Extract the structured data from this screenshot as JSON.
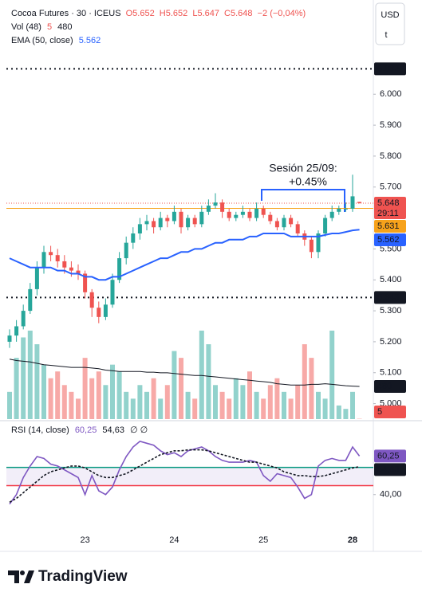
{
  "chart_data": [
    {
      "type": "candlestick",
      "symbol": "Cocoa Futures · 30 · ICEUS",
      "ohlc_labels": [
        "O5.652",
        "H5.652",
        "L5.647",
        "C5.648",
        "−2 (−0,04%)"
      ],
      "categories": [
        null,
        null,
        null,
        null,
        null,
        null,
        null,
        null,
        null,
        null,
        null,
        "23",
        null,
        null,
        null,
        null,
        null,
        null,
        null,
        null,
        null,
        null,
        null,
        null,
        "24",
        null,
        null,
        null,
        null,
        null,
        null,
        null,
        null,
        null,
        null,
        null,
        null,
        "25",
        null,
        null,
        null,
        null,
        null,
        null,
        null,
        null,
        null,
        null,
        null,
        null,
        "28",
        null
      ],
      "open": [
        5.2,
        5.22,
        5.25,
        5.3,
        5.37,
        5.44,
        5.49,
        5.48,
        5.46,
        5.44,
        5.43,
        5.42,
        5.36,
        5.31,
        5.28,
        5.32,
        5.4,
        5.47,
        5.52,
        5.55,
        5.58,
        5.59,
        5.57,
        5.6,
        5.59,
        5.62,
        5.57,
        5.6,
        5.58,
        5.62,
        5.64,
        5.65,
        5.62,
        5.6,
        5.61,
        5.62,
        5.6,
        5.63,
        5.61,
        5.59,
        5.57,
        5.6,
        5.58,
        5.55,
        5.53,
        5.49,
        5.55,
        5.6,
        5.62,
        5.63,
        5.63,
        5.652
      ],
      "high": [
        5.24,
        5.27,
        5.32,
        5.39,
        5.46,
        5.51,
        5.51,
        5.5,
        5.48,
        5.46,
        5.45,
        5.43,
        5.37,
        5.33,
        5.34,
        5.42,
        5.49,
        5.54,
        5.57,
        5.6,
        5.61,
        5.6,
        5.62,
        5.61,
        5.64,
        5.63,
        5.61,
        5.61,
        5.64,
        5.66,
        5.68,
        5.66,
        5.63,
        5.62,
        5.64,
        5.63,
        5.65,
        5.64,
        5.62,
        5.6,
        5.61,
        5.61,
        5.59,
        5.56,
        5.54,
        5.56,
        5.61,
        5.64,
        5.64,
        5.65,
        5.74,
        5.652
      ],
      "low": [
        5.18,
        5.2,
        5.24,
        5.29,
        5.35,
        5.42,
        5.46,
        5.44,
        5.42,
        5.41,
        5.4,
        5.34,
        5.28,
        5.26,
        5.27,
        5.31,
        5.39,
        5.45,
        5.5,
        5.53,
        5.56,
        5.55,
        5.56,
        5.57,
        5.58,
        5.55,
        5.56,
        5.57,
        5.57,
        5.61,
        5.63,
        5.6,
        5.59,
        5.59,
        5.6,
        5.59,
        5.59,
        5.6,
        5.58,
        5.56,
        5.56,
        5.57,
        5.54,
        5.51,
        5.47,
        5.47,
        5.54,
        5.59,
        5.61,
        5.62,
        5.62,
        5.647
      ],
      "close": [
        5.22,
        5.25,
        5.3,
        5.37,
        5.44,
        5.49,
        5.48,
        5.46,
        5.44,
        5.43,
        5.42,
        5.36,
        5.31,
        5.28,
        5.32,
        5.4,
        5.47,
        5.52,
        5.55,
        5.58,
        5.59,
        5.57,
        5.6,
        5.59,
        5.62,
        5.57,
        5.6,
        5.58,
        5.62,
        5.64,
        5.65,
        5.62,
        5.6,
        5.61,
        5.62,
        5.6,
        5.63,
        5.61,
        5.59,
        5.57,
        5.6,
        5.58,
        5.55,
        5.53,
        5.49,
        5.55,
        5.6,
        5.62,
        5.63,
        5.63,
        5.67,
        5.648
      ],
      "up_color": "#26a69a",
      "down_color": "#ef5350",
      "ylim": [
        4.95,
        6.15
      ],
      "yticks": [
        {
          "value": 6.0,
          "label": "6.000"
        },
        {
          "value": 5.9,
          "label": "5.900"
        },
        {
          "value": 5.8,
          "label": "5.800"
        },
        {
          "value": 5.7,
          "label": "5.700"
        },
        {
          "value": 5.5,
          "label": "5.500"
        },
        {
          "value": 5.4,
          "label": "5.400"
        },
        {
          "value": 5.3,
          "label": "5.300"
        },
        {
          "value": 5.2,
          "label": "5.200"
        },
        {
          "value": 5.1,
          "label": "5.100"
        },
        {
          "value": 5.0,
          "label": "5.000"
        }
      ],
      "countdown": "29:11",
      "prev_close": 5.631,
      "prev_close_color": "#f7a21b",
      "levels": [
        6.082,
        5.343
      ],
      "ema": {
        "name": "EMA (50, close)",
        "color": "#2962ff",
        "values": [
          5.47,
          5.46,
          5.45,
          5.44,
          5.44,
          5.44,
          5.44,
          5.43,
          5.43,
          5.42,
          5.42,
          5.41,
          5.41,
          5.4,
          5.4,
          5.41,
          5.41,
          5.42,
          5.43,
          5.44,
          5.45,
          5.46,
          5.47,
          5.47,
          5.48,
          5.49,
          5.49,
          5.5,
          5.5,
          5.51,
          5.52,
          5.52,
          5.53,
          5.53,
          5.53,
          5.54,
          5.54,
          5.55,
          5.55,
          5.55,
          5.55,
          5.54,
          5.54,
          5.54,
          5.54,
          5.54,
          5.545,
          5.55,
          5.55,
          5.555,
          5.56,
          5.562
        ]
      },
      "volume": {
        "name": "Vol (48)",
        "lim": [
          0,
          5455
        ],
        "values": [
          400,
          900,
          1200,
          1300,
          1100,
          800,
          600,
          700,
          500,
          400,
          300,
          900,
          600,
          700,
          500,
          800,
          700,
          400,
          300,
          500,
          400,
          600,
          300,
          500,
          1000,
          900,
          400,
          300,
          1300,
          1100,
          500,
          400,
          300,
          600,
          500,
          700,
          400,
          300,
          500,
          600,
          400,
          300,
          500,
          1100,
          900,
          400,
          300,
          1300,
          200,
          150,
          400,
          5
        ],
        "ma": [
          880,
          860,
          850,
          840,
          820,
          800,
          790,
          780,
          770,
          760,
          760,
          760,
          750,
          740,
          720,
          710,
          700,
          700,
          700,
          700,
          690,
          690,
          680,
          680,
          670,
          660,
          650,
          640,
          640,
          630,
          620,
          610,
          600,
          590,
          580,
          570,
          560,
          550,
          540,
          520,
          510,
          500,
          500,
          500,
          510,
          510,
          520,
          510,
          500,
          490,
          485,
          480
        ],
        "ma_color": "#131722"
      },
      "annotation": [
        "Sesión 25/09:",
        "+0.45%"
      ],
      "currency": "USD",
      "unit": "t"
    },
    {
      "type": "line",
      "title": "RSI (14, close)",
      "icons": "∅ ∅",
      "ylim": [
        11,
        78
      ],
      "yticks": [
        {
          "value": 40,
          "label": "40,00"
        }
      ],
      "bands": [
        {
          "value": 54.3,
          "color": "#089981"
        },
        {
          "value": 44.7,
          "color": "#f23645"
        }
      ],
      "series": [
        {
          "name": "RSI",
          "color": "#7e57c2",
          "last_label": "60,25",
          "values": [
            35,
            40,
            49,
            55,
            60,
            59,
            56,
            55,
            53,
            51,
            49,
            40,
            50,
            42,
            40,
            44,
            53,
            60,
            65,
            68,
            67,
            66,
            63,
            61,
            62,
            60,
            63,
            64,
            65,
            63,
            60,
            58,
            57,
            57,
            57,
            58,
            57,
            50,
            47,
            51,
            50,
            49,
            44,
            38,
            40,
            55,
            58,
            59,
            58,
            58,
            65,
            60.25
          ]
        },
        {
          "name": "RSI MA",
          "color": "#131722",
          "last_label": "54,63",
          "values": [
            36,
            38,
            41,
            44,
            47,
            50,
            52,
            53,
            54,
            55,
            55,
            54,
            52,
            50,
            49,
            49,
            50,
            51,
            53,
            55,
            57,
            59,
            61,
            62,
            63,
            63,
            63.5,
            63.5,
            63.5,
            63,
            62,
            61,
            60,
            59,
            58,
            57,
            57,
            56,
            55,
            54,
            52,
            51,
            50,
            50,
            49.5,
            49.5,
            50,
            51,
            52,
            53,
            54,
            54.63
          ]
        }
      ]
    }
  ],
  "brand": "TradingView"
}
